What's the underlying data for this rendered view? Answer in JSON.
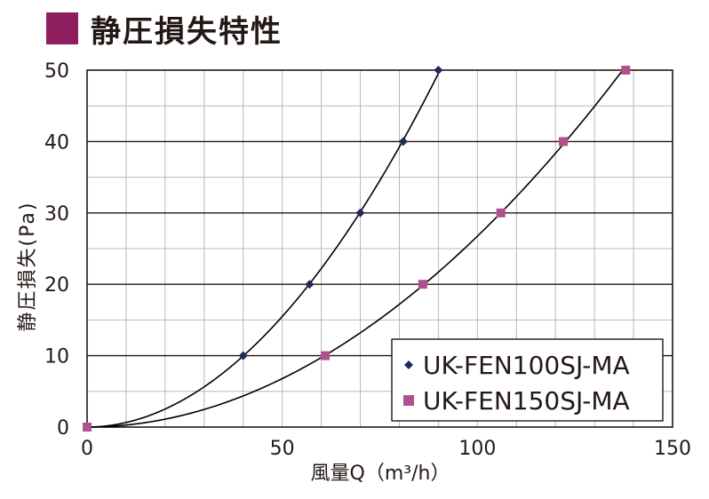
{
  "page": {
    "title": "静圧損失特性",
    "accent_color": "#8e1f5f"
  },
  "chart_data": {
    "type": "line",
    "title": "静圧損失特性",
    "xlabel": "風量Q（m³/h）",
    "ylabel": "静圧損失(Pa)",
    "xlim": [
      0,
      150
    ],
    "ylim": [
      0,
      50
    ],
    "x_ticks": [
      0,
      50,
      100,
      150
    ],
    "y_ticks": [
      0,
      10,
      20,
      30,
      40,
      50
    ],
    "x_tick_labels": [
      "0",
      "50",
      "100",
      "150"
    ],
    "y_tick_labels": [
      "0",
      "10",
      "20",
      "30",
      "40",
      "50"
    ],
    "grid": true,
    "legend_position": "bottom-right",
    "series": [
      {
        "name": "UK-FEN100SJ-MA",
        "marker": "diamond",
        "marker_color": "#1f2a5a",
        "line_color": "#000000",
        "x": [
          0,
          40,
          57,
          70,
          81,
          90
        ],
        "y": [
          0,
          10,
          20,
          30,
          40,
          50
        ]
      },
      {
        "name": "UK-FEN150SJ-MA",
        "marker": "square",
        "marker_color": "#b0508f",
        "line_color": "#000000",
        "x": [
          0,
          61,
          86,
          106,
          122,
          138
        ],
        "y": [
          0,
          10,
          20,
          30,
          40,
          50
        ]
      }
    ]
  }
}
